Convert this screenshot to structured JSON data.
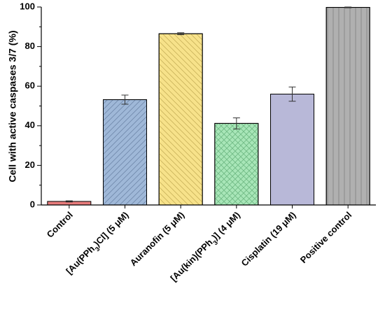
{
  "chart_data": {
    "type": "bar",
    "ylabel": "Cell with active caspases 3/7 (%)",
    "xlabel": "",
    "ylim": [
      0,
      100
    ],
    "yticks": [
      "0",
      "20",
      "40",
      "60",
      "80",
      "100"
    ],
    "grid": false,
    "categories": [
      {
        "name": "control",
        "parts": [
          {
            "t": "Control"
          }
        ]
      },
      {
        "name": "au-pph3-cl",
        "parts": [
          {
            "t": "[Au(PPh"
          },
          {
            "t": "3",
            "sub": true
          },
          {
            "t": ")Cl] (5 μM)"
          }
        ]
      },
      {
        "name": "auranofin",
        "parts": [
          {
            "t": "Auranofin (5 μM)"
          }
        ]
      },
      {
        "name": "au-kin-pph3",
        "parts": [
          {
            "t": "[Au(kin)(PPh"
          },
          {
            "t": "3",
            "sub": true
          },
          {
            "t": ")] (4 μM)"
          }
        ]
      },
      {
        "name": "cisplatin",
        "parts": [
          {
            "t": "Cisplatin (19 μM)"
          }
        ]
      },
      {
        "name": "positive-control",
        "parts": [
          {
            "t": "Positive control"
          }
        ]
      }
    ],
    "values": [
      1.8,
      53.2,
      86.5,
      41.2,
      56.0,
      99.8
    ],
    "errors": [
      0.3,
      2.3,
      0.5,
      2.8,
      3.6,
      0.2
    ],
    "colors": [
      "#e87c7c",
      "#9fb8d8",
      "#f7e28a",
      "#a8e6b8",
      "#b8b8d8",
      "#b0b0b0"
    ],
    "hatch": [
      "none",
      "diag-right",
      "diag-left",
      "cross",
      "none",
      "vertical"
    ]
  }
}
